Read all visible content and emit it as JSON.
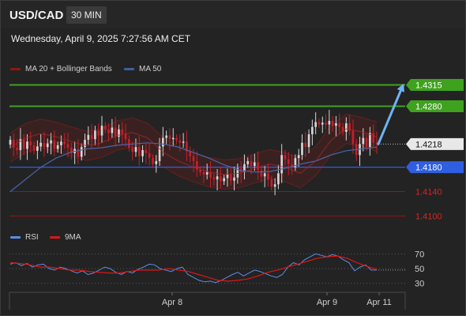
{
  "header": {
    "symbol": "USD/CAD",
    "timeframe": "30 MIN"
  },
  "date_text": "Wednesday, April 9, 2025 7:27:56 AM CET",
  "legend_main": [
    {
      "label": "MA 20 + Bollinger Bands",
      "color": "#8b1a1a"
    },
    {
      "label": "MA 50",
      "color": "#3d5fa8"
    }
  ],
  "legend_rsi": [
    {
      "label": "RSI",
      "color": "#5b8ee6"
    },
    {
      "label": "9MA",
      "color": "#e01515"
    }
  ],
  "colors": {
    "up": "#d6d6d6",
    "down": "#c81e2a",
    "resistance": "#3fa21e",
    "support_blue": "#2f5fe0",
    "support_red": "#9b1515",
    "current": "#ffffff",
    "arrow": "#6fb3f4"
  },
  "chart_data": [
    {
      "type": "candlestick",
      "title": "USD/CAD",
      "timeframe": "30 MIN",
      "ylim": [
        1.4085,
        1.4335
      ],
      "x_ticks": [
        "Apr 8",
        "Apr 9",
        "Apr 11"
      ],
      "close": [
        1.4225,
        1.4212,
        1.4208,
        1.4226,
        1.421,
        1.4222,
        1.4216,
        1.4207,
        1.4214,
        1.422,
        1.4213,
        1.4219,
        1.4224,
        1.421,
        1.4216,
        1.4222,
        1.4218,
        1.4212,
        1.4203,
        1.421,
        1.4197,
        1.4213,
        1.4225,
        1.4233,
        1.4226,
        1.424,
        1.4232,
        1.4248,
        1.4242,
        1.4236,
        1.4245,
        1.423,
        1.4242,
        1.4235,
        1.4226,
        1.4212,
        1.4205,
        1.4213,
        1.4198,
        1.4208,
        1.4203,
        1.4195,
        1.4185,
        1.419,
        1.4214,
        1.4228,
        1.4232,
        1.4226,
        1.4228,
        1.4224,
        1.422,
        1.4222,
        1.4206,
        1.4198,
        1.419,
        1.4176,
        1.4172,
        1.4168,
        1.4172,
        1.4163,
        1.416,
        1.4165,
        1.4157,
        1.4162,
        1.4168,
        1.4158,
        1.4163,
        1.4178,
        1.4172,
        1.4185,
        1.419,
        1.4182,
        1.4188,
        1.4175,
        1.4165,
        1.417,
        1.416,
        1.4148,
        1.4152,
        1.417,
        1.42,
        1.4193,
        1.4185,
        1.418,
        1.4195,
        1.42,
        1.422,
        1.4213,
        1.4234,
        1.4246,
        1.4254,
        1.425,
        1.4253,
        1.425,
        1.4256,
        1.4248,
        1.4252,
        1.4246,
        1.4238,
        1.4252,
        1.424,
        1.4218,
        1.42,
        1.4218,
        1.4228,
        1.4213,
        1.4236,
        1.422,
        1.4218
      ]
    },
    {
      "type": "line",
      "series": [
        {
          "name": "MA 20 + Bollinger Bands",
          "values": [
            1.4212,
            1.4228,
            1.4235,
            1.423,
            1.4222,
            1.4215,
            1.422,
            1.4232,
            1.4237,
            1.4228,
            1.4205,
            1.419,
            1.418,
            1.4172,
            1.4168,
            1.417,
            1.4178,
            1.4185,
            1.418,
            1.417,
            1.419,
            1.4224,
            1.4243,
            1.4238,
            1.423
          ]
        },
        {
          "name": "MA 50",
          "values": [
            1.414,
            1.416,
            1.418,
            1.4195,
            1.4205,
            1.421,
            1.4212,
            1.4216,
            1.4218,
            1.422,
            1.4218,
            1.4213,
            1.4204,
            1.4195,
            1.4184,
            1.4175,
            1.4172,
            1.4173,
            1.4178,
            1.4185,
            1.419,
            1.42,
            1.4207,
            1.421,
            1.4213
          ]
        }
      ]
    },
    {
      "type": "line",
      "title": "RSI",
      "ylim": [
        20,
        80
      ],
      "y_ticks": [
        "70",
        "50",
        "30"
      ],
      "series": [
        {
          "name": "RSI",
          "values": [
            56,
            58,
            54,
            57,
            52,
            55,
            56,
            50,
            48,
            52,
            50,
            47,
            44,
            47,
            42,
            44,
            48,
            52,
            50,
            45,
            42,
            46,
            44,
            49,
            52,
            56,
            55,
            50,
            48,
            46,
            50,
            52,
            42,
            38,
            34,
            32,
            33,
            31,
            34,
            38,
            42,
            45,
            40,
            44,
            48,
            46,
            43,
            40,
            38,
            42,
            52,
            58,
            55,
            62,
            66,
            70,
            68,
            66,
            69,
            67,
            62,
            58,
            47,
            52,
            55,
            48,
            48
          ]
        },
        {
          "name": "9MA",
          "values": [
            58,
            57,
            55,
            52,
            52,
            50,
            48,
            48,
            46,
            45,
            44,
            44,
            46,
            48,
            48,
            48,
            50,
            48,
            46,
            42,
            38,
            34,
            33,
            34,
            36,
            40,
            45,
            48,
            52,
            56,
            60,
            64,
            66,
            67,
            64,
            58,
            53,
            49
          ]
        }
      ]
    },
    {
      "type": "annotation",
      "levels": [
        {
          "label": "1.4315",
          "value": 1.4315,
          "kind": "resistance"
        },
        {
          "label": "1.4280",
          "value": 1.428,
          "kind": "resistance"
        },
        {
          "label": "1.4218",
          "value": 1.4218,
          "kind": "current"
        },
        {
          "label": "1.4180",
          "value": 1.418,
          "kind": "support_blue"
        },
        {
          "label": "1.4140",
          "value": 1.414,
          "kind": "support_red"
        },
        {
          "label": "1.4100",
          "value": 1.41,
          "kind": "support_red"
        }
      ]
    }
  ]
}
